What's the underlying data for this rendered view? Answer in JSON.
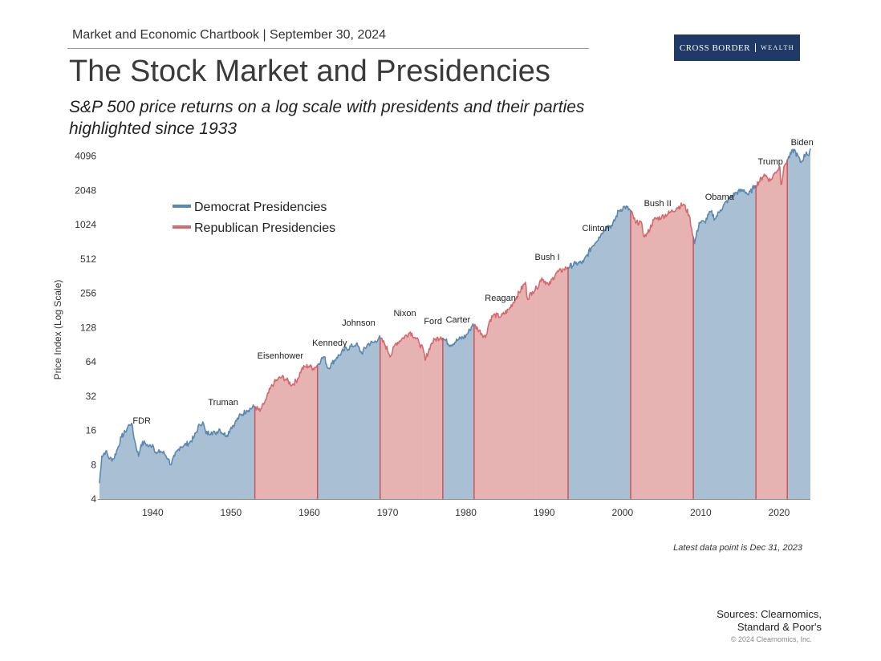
{
  "header": {
    "text": "Market and Economic Chartbook | September 30, 2024",
    "logo_main": "CROSS BORDER",
    "logo_sub": "WEALTH"
  },
  "title": "The Stock Market and Presidencies",
  "subtitle": "S&P 500 price returns on a log scale with presidents and their parties highlighted since 1933",
  "chart_data": {
    "type": "area",
    "title": "The Stock Market and Presidencies",
    "xlabel": "",
    "ylabel": "Price Index (Log Scale)",
    "yscale": "log2",
    "ylim": [
      4,
      5200
    ],
    "xlim": [
      1933,
      2024
    ],
    "xticks": [
      1940,
      1950,
      1960,
      1970,
      1980,
      1990,
      2000,
      2010,
      2020
    ],
    "yticks": [
      4,
      8,
      16,
      32,
      64,
      128,
      256,
      512,
      1024,
      2048,
      4096
    ],
    "legend": {
      "position": "top-left",
      "entries": [
        {
          "label": "Democrat Presidencies",
          "color": "#5b88b2"
        },
        {
          "label": "Republican Presidencies",
          "color": "#d46a6e"
        }
      ]
    },
    "colors": {
      "D": {
        "fill": "#a9bfd4",
        "line": "#5b88b2"
      },
      "R": {
        "fill": "#e7b2b2",
        "line": "#d46a6e"
      }
    },
    "presidencies": [
      {
        "name": "FDR",
        "party": "D",
        "start": 1933.2,
        "end": 1945.3
      },
      {
        "name": "Truman",
        "party": "D",
        "start": 1945.3,
        "end": 1953.05
      },
      {
        "name": "Eisenhower",
        "party": "R",
        "start": 1953.05,
        "end": 1961.05
      },
      {
        "name": "Kennedy",
        "party": "D",
        "start": 1961.05,
        "end": 1963.9
      },
      {
        "name": "Johnson",
        "party": "D",
        "start": 1963.9,
        "end": 1969.05
      },
      {
        "name": "Nixon",
        "party": "R",
        "start": 1969.05,
        "end": 1974.6
      },
      {
        "name": "Ford",
        "party": "R",
        "start": 1974.6,
        "end": 1977.05
      },
      {
        "name": "Carter",
        "party": "D",
        "start": 1977.05,
        "end": 1981.05
      },
      {
        "name": "Reagan",
        "party": "R",
        "start": 1981.05,
        "end": 1989.05
      },
      {
        "name": "Bush I",
        "party": "R",
        "start": 1989.05,
        "end": 1993.05
      },
      {
        "name": "Clinton",
        "party": "D",
        "start": 1993.05,
        "end": 2001.05
      },
      {
        "name": "Bush II",
        "party": "R",
        "start": 2001.05,
        "end": 2009.05
      },
      {
        "name": "Obama",
        "party": "D",
        "start": 2009.05,
        "end": 2017.05
      },
      {
        "name": "Trump",
        "party": "R",
        "start": 2017.05,
        "end": 2021.05
      },
      {
        "name": "Biden",
        "party": "D",
        "start": 2021.05,
        "end": 2024.0
      }
    ],
    "series": [
      {
        "name": "S&P 500",
        "points": [
          [
            1933.0,
            6.5
          ],
          [
            1933.2,
            5.5
          ],
          [
            1933.5,
            9.5
          ],
          [
            1934.0,
            10.5
          ],
          [
            1934.5,
            9.0
          ],
          [
            1935.0,
            9.0
          ],
          [
            1935.5,
            11.0
          ],
          [
            1936.0,
            14.0
          ],
          [
            1936.5,
            15.5
          ],
          [
            1937.0,
            18.0
          ],
          [
            1937.3,
            18.5
          ],
          [
            1937.7,
            13.0
          ],
          [
            1938.2,
            9.5
          ],
          [
            1938.5,
            12.0
          ],
          [
            1939.0,
            12.5
          ],
          [
            1939.5,
            11.5
          ],
          [
            1940.0,
            12.0
          ],
          [
            1940.5,
            10.0
          ],
          [
            1941.0,
            10.5
          ],
          [
            1941.5,
            10.0
          ],
          [
            1942.0,
            9.0
          ],
          [
            1942.3,
            8.0
          ],
          [
            1942.8,
            9.5
          ],
          [
            1943.5,
            11.5
          ],
          [
            1944.0,
            11.8
          ],
          [
            1944.7,
            12.5
          ],
          [
            1945.3,
            14.0
          ],
          [
            1946.0,
            18.0
          ],
          [
            1946.4,
            19.0
          ],
          [
            1946.8,
            15.0
          ],
          [
            1947.5,
            15.5
          ],
          [
            1948.0,
            15.0
          ],
          [
            1948.5,
            16.5
          ],
          [
            1949.0,
            15.0
          ],
          [
            1949.5,
            14.5
          ],
          [
            1950.0,
            17.0
          ],
          [
            1950.5,
            18.5
          ],
          [
            1951.0,
            21.0
          ],
          [
            1952.0,
            24.0
          ],
          [
            1953.05,
            26.0
          ],
          [
            1953.7,
            23.5
          ],
          [
            1954.5,
            30.0
          ],
          [
            1955.0,
            37.0
          ],
          [
            1955.5,
            42.0
          ],
          [
            1956.0,
            45.0
          ],
          [
            1956.5,
            47.0
          ],
          [
            1957.0,
            45.0
          ],
          [
            1957.8,
            40.0
          ],
          [
            1958.5,
            45.0
          ],
          [
            1959.0,
            55.0
          ],
          [
            1959.5,
            58.0
          ],
          [
            1960.0,
            59.0
          ],
          [
            1960.5,
            56.0
          ],
          [
            1961.05,
            60.0
          ],
          [
            1961.5,
            67.0
          ],
          [
            1961.9,
            71.0
          ],
          [
            1962.4,
            56.0
          ],
          [
            1962.9,
            62.0
          ],
          [
            1963.5,
            70.0
          ],
          [
            1963.9,
            74.0
          ],
          [
            1964.5,
            82.0
          ],
          [
            1965.5,
            88.0
          ],
          [
            1966.0,
            92.0
          ],
          [
            1966.7,
            76.0
          ],
          [
            1967.5,
            92.0
          ],
          [
            1968.3,
            95.0
          ],
          [
            1968.9,
            104.0
          ],
          [
            1969.05,
            103.0
          ],
          [
            1969.6,
            92.0
          ],
          [
            1970.4,
            72.0
          ],
          [
            1971.0,
            92.0
          ],
          [
            1972.0,
            104.0
          ],
          [
            1972.9,
            117.0
          ],
          [
            1973.5,
            105.0
          ],
          [
            1974.0,
            95.0
          ],
          [
            1974.6,
            80.0
          ],
          [
            1974.8,
            66.0
          ],
          [
            1975.5,
            90.0
          ],
          [
            1976.0,
            100.0
          ],
          [
            1976.8,
            106.0
          ],
          [
            1977.05,
            104.0
          ],
          [
            1978.0,
            90.0
          ],
          [
            1979.0,
            100.0
          ],
          [
            1980.0,
            108.0
          ],
          [
            1980.5,
            122.0
          ],
          [
            1980.9,
            138.0
          ],
          [
            1981.05,
            134.0
          ],
          [
            1981.5,
            125.0
          ],
          [
            1982.5,
            105.0
          ],
          [
            1983.0,
            145.0
          ],
          [
            1983.5,
            165.0
          ],
          [
            1984.5,
            160.0
          ],
          [
            1985.5,
            185.0
          ],
          [
            1986.5,
            240.0
          ],
          [
            1987.6,
            320.0
          ],
          [
            1987.85,
            230.0
          ],
          [
            1988.5,
            265.0
          ],
          [
            1989.05,
            285.0
          ],
          [
            1989.7,
            350.0
          ],
          [
            1990.6,
            300.0
          ],
          [
            1991.5,
            385.0
          ],
          [
            1992.5,
            415.0
          ],
          [
            1993.05,
            435.0
          ],
          [
            1994.0,
            465.0
          ],
          [
            1995.0,
            480.0
          ],
          [
            1996.0,
            640.0
          ],
          [
            1997.0,
            800.0
          ],
          [
            1998.0,
            1000.0
          ],
          [
            1998.7,
            1000.0
          ],
          [
            1999.5,
            1350.0
          ],
          [
            2000.3,
            1480.0
          ],
          [
            2001.05,
            1360.0
          ],
          [
            2001.7,
            1050.0
          ],
          [
            2002.3,
            1100.0
          ],
          [
            2002.8,
            800.0
          ],
          [
            2003.2,
            860.0
          ],
          [
            2004.0,
            1130.0
          ],
          [
            2005.0,
            1200.0
          ],
          [
            2006.0,
            1300.0
          ],
          [
            2007.0,
            1450.0
          ],
          [
            2007.8,
            1550.0
          ],
          [
            2008.5,
            1250.0
          ],
          [
            2009.05,
            800.0
          ],
          [
            2009.2,
            700.0
          ],
          [
            2009.8,
            1070.0
          ],
          [
            2010.5,
            1080.0
          ],
          [
            2011.3,
            1340.0
          ],
          [
            2011.8,
            1150.0
          ],
          [
            2012.5,
            1380.0
          ],
          [
            2013.5,
            1700.0
          ],
          [
            2014.5,
            1950.0
          ],
          [
            2015.5,
            2080.0
          ],
          [
            2016.1,
            1870.0
          ],
          [
            2016.9,
            2250.0
          ],
          [
            2017.05,
            2270.0
          ],
          [
            2017.9,
            2680.0
          ],
          [
            2018.1,
            2850.0
          ],
          [
            2018.9,
            2500.0
          ],
          [
            2019.5,
            2950.0
          ],
          [
            2020.1,
            3300.0
          ],
          [
            2020.25,
            2300.0
          ],
          [
            2020.7,
            3400.0
          ],
          [
            2021.05,
            3800.0
          ],
          [
            2021.9,
            4700.0
          ],
          [
            2022.8,
            3600.0
          ],
          [
            2023.5,
            4450.0
          ],
          [
            2023.8,
            4150.0
          ],
          [
            2024.0,
            4780.0
          ]
        ]
      }
    ]
  },
  "footnote": "Latest data point is Dec 31, 2023",
  "sources_line1": "Sources: Clearnomics,",
  "sources_line2": "Standard & Poor's",
  "copyright": "© 2024 Clearnomics, Inc."
}
